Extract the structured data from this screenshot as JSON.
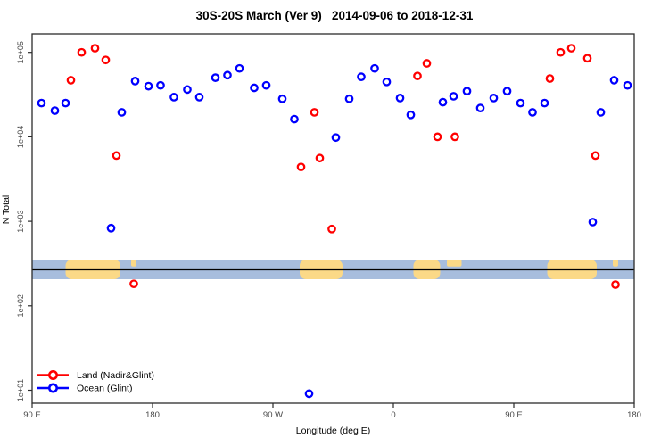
{
  "title": "30S-20S March (Ver 9)   2014-09-06 to 2018-12-31",
  "chart_data": {
    "type": "scatter",
    "title": "30S-20S March (Ver 9)   2014-09-06 to 2018-12-31",
    "xlabel": "Longitude (deg E)",
    "ylabel": "N Total",
    "x_axis": {
      "unit": "degrees east along axis starting at 90E, wrapping past 180 to 90W, 0, 90E, 180",
      "range_deg": [
        0,
        450
      ],
      "ticks": [
        {
          "deg": 0,
          "label": "90 E"
        },
        {
          "deg": 90,
          "label": "180"
        },
        {
          "deg": 180,
          "label": "90 W"
        },
        {
          "deg": 270,
          "label": "0"
        },
        {
          "deg": 360,
          "label": "90 E"
        },
        {
          "deg": 450,
          "label": "180"
        }
      ]
    },
    "y_axis": {
      "scale": "log10",
      "log_range": [
        0.85,
        5.22
      ],
      "ticks": [
        {
          "log": 5,
          "label": "1e+05"
        },
        {
          "log": 4,
          "label": "1e+04"
        },
        {
          "log": 3,
          "label": "1e+03"
        },
        {
          "log": 2,
          "label": "1e+02"
        },
        {
          "log": 1,
          "label": "1e+01"
        }
      ]
    },
    "legend_position": "bottom-left",
    "series": [
      {
        "name": "Land (Nadir&Glint)",
        "color": "#ff0000",
        "points": [
          [
            29,
            46800
          ],
          [
            37,
            100000
          ],
          [
            47,
            112000
          ],
          [
            55,
            81300
          ],
          [
            63,
            6000
          ],
          [
            76,
            182
          ],
          [
            201,
            4400
          ],
          [
            211,
            19500
          ],
          [
            215,
            5600
          ],
          [
            224,
            810
          ],
          [
            288,
            52500
          ],
          [
            295,
            74100
          ],
          [
            303,
            10000
          ],
          [
            316,
            10000
          ],
          [
            387,
            49000
          ],
          [
            395,
            100000
          ],
          [
            403,
            112000
          ],
          [
            415,
            85100
          ],
          [
            421,
            6000
          ],
          [
            436,
            178
          ]
        ]
      },
      {
        "name": "Ocean (Glint)",
        "color": "#0000ff",
        "points": [
          [
            7,
            25100
          ],
          [
            17,
            20400
          ],
          [
            25,
            25100
          ],
          [
            59,
            830
          ],
          [
            67,
            19500
          ],
          [
            77,
            45700
          ],
          [
            87,
            39800
          ],
          [
            96,
            40700
          ],
          [
            106,
            29500
          ],
          [
            116,
            36300
          ],
          [
            125,
            29500
          ],
          [
            137,
            50100
          ],
          [
            146,
            53700
          ],
          [
            155,
            64600
          ],
          [
            166,
            38000
          ],
          [
            175,
            40700
          ],
          [
            187,
            28200
          ],
          [
            196,
            16200
          ],
          [
            207,
            9.1
          ],
          [
            227,
            9800
          ],
          [
            237,
            28200
          ],
          [
            246,
            51300
          ],
          [
            256,
            64600
          ],
          [
            265,
            44700
          ],
          [
            275,
            28800
          ],
          [
            283,
            18200
          ],
          [
            307,
            25700
          ],
          [
            315,
            30200
          ],
          [
            325,
            34700
          ],
          [
            335,
            21900
          ],
          [
            345,
            28800
          ],
          [
            355,
            34700
          ],
          [
            365,
            25100
          ],
          [
            374,
            19500
          ],
          [
            383,
            25100
          ],
          [
            419,
            980
          ],
          [
            425,
            19500
          ],
          [
            435,
            46800
          ],
          [
            445,
            40700
          ]
        ]
      }
    ],
    "map_strip": {
      "description": "Geographic band inset (30S-20S latitude strip) drawn across the plot",
      "ocean_color": "#a7bddd",
      "land_color": "#fbd987",
      "midline_color": "#000000",
      "land_segments": [
        {
          "name": "australia",
          "d1": 25,
          "d2": 66,
          "part": "full"
        },
        {
          "name": "new-caledonia",
          "d1": 74,
          "d2": 78,
          "part": "top"
        },
        {
          "name": "south-america",
          "d1": 200,
          "d2": 232,
          "part": "full"
        },
        {
          "name": "africa",
          "d1": 285,
          "d2": 305,
          "part": "full"
        },
        {
          "name": "madagascar",
          "d1": 310,
          "d2": 321,
          "part": "top"
        },
        {
          "name": "australia-repeat",
          "d1": 385,
          "d2": 422,
          "part": "full"
        },
        {
          "name": "new-caledonia-repeat",
          "d1": 434,
          "d2": 438,
          "part": "top"
        }
      ]
    }
  },
  "colors": {
    "land_series": "#ff0000",
    "ocean_series": "#0000ff",
    "axis": "#2b2b2b",
    "tick_text": "#4a4a4a"
  }
}
